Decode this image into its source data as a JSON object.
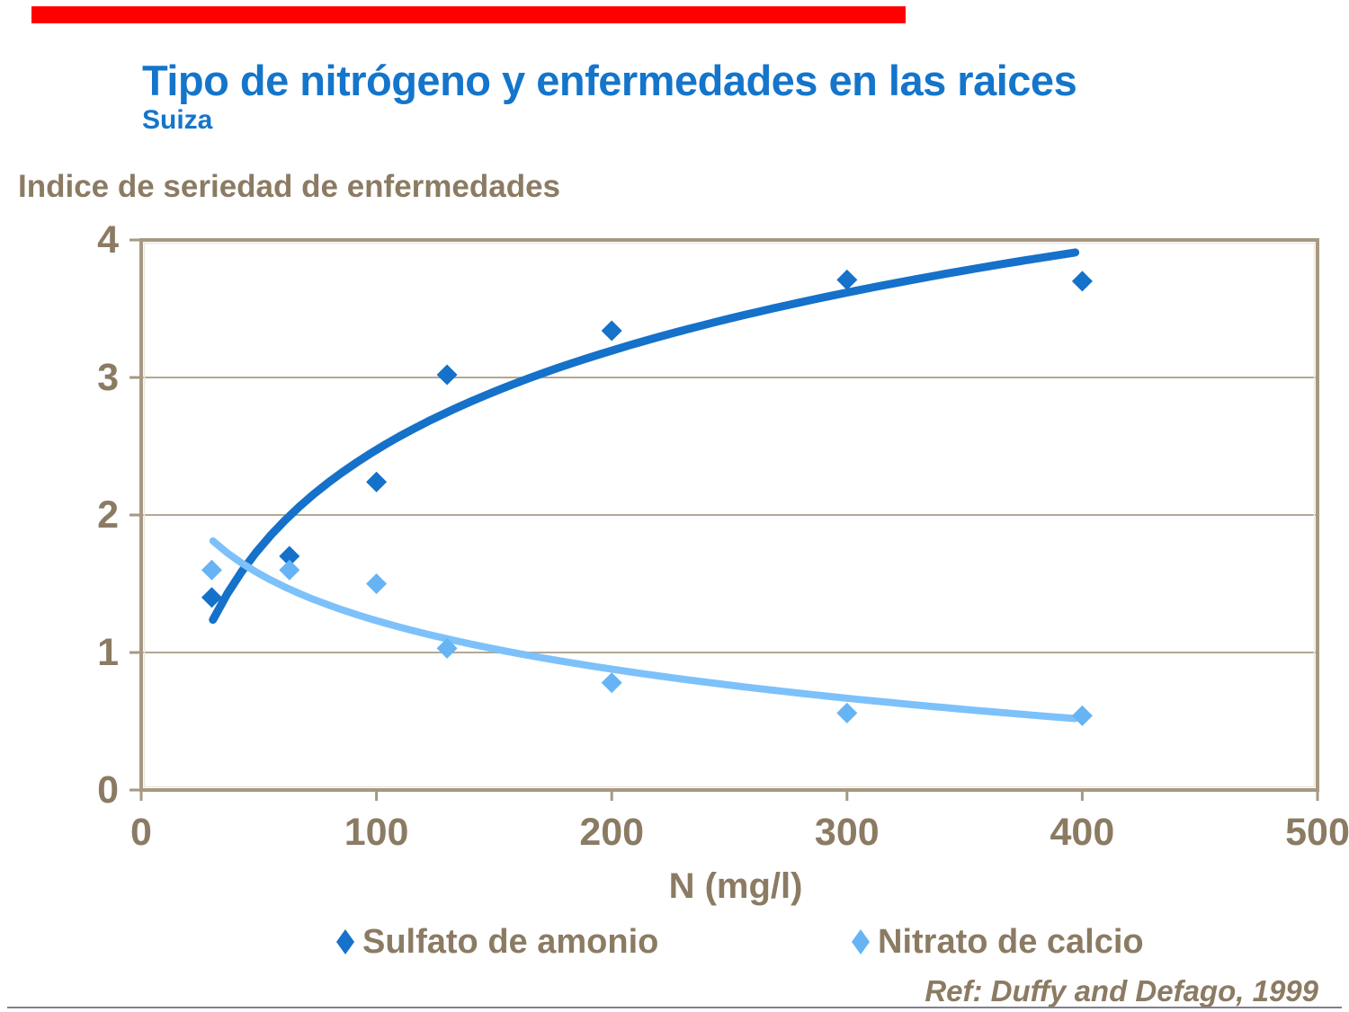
{
  "slide": {
    "title": "Tipo de nitrógeno y enfermedades en las raices",
    "subtitle": "Suiza",
    "accent_bar_color": "#FF0000",
    "reference": "Ref: Duffy and Defago, 1999",
    "divider_color": "#80808C",
    "title_color": "#1475CB",
    "text_color": "#8B7B63"
  },
  "chart_data": {
    "type": "scatter",
    "title_left": "Indice de seriedad de enfermedades",
    "xlabel": "N (mg/l)",
    "ylabel": "",
    "xlim": [
      0,
      500
    ],
    "ylim": [
      0,
      4
    ],
    "x_ticks": [
      0,
      100,
      200,
      300,
      400,
      500
    ],
    "y_ticks": [
      0,
      1,
      2,
      3,
      4
    ],
    "grid": "horizontal",
    "legend_position": "bottom",
    "colors": {
      "frame": "#A69983",
      "grid": "#B4A892",
      "frame_highlight": "#EDE7DB"
    },
    "series": [
      {
        "name": "Sulfato de amonio",
        "color": "#1571C9",
        "line_color": "#1571C9",
        "line_width": 9,
        "marker": "diamond",
        "x": [
          30,
          63,
          100,
          130,
          200,
          300,
          400
        ],
        "y": [
          1.4,
          1.7,
          2.24,
          3.02,
          3.34,
          3.71,
          3.7
        ],
        "trend": {
          "kind": "logarithmic",
          "a": -2.32,
          "b": 1.041,
          "c": 0,
          "range": [
            30.5,
            397
          ]
        }
      },
      {
        "name": "Nitrato de calcio",
        "color": "#66B4F4",
        "line_color": "#7DC1FA",
        "line_width": 8,
        "marker": "diamond",
        "x": [
          30,
          63,
          100,
          130,
          200,
          300,
          400
        ],
        "y": [
          1.6,
          1.6,
          1.5,
          1.03,
          0.78,
          0.56,
          0.54
        ],
        "trend": {
          "kind": "logarithmic",
          "a": 3.307,
          "b": -0.4,
          "c": -0.011,
          "range": [
            30.5,
            397
          ]
        }
      }
    ]
  }
}
